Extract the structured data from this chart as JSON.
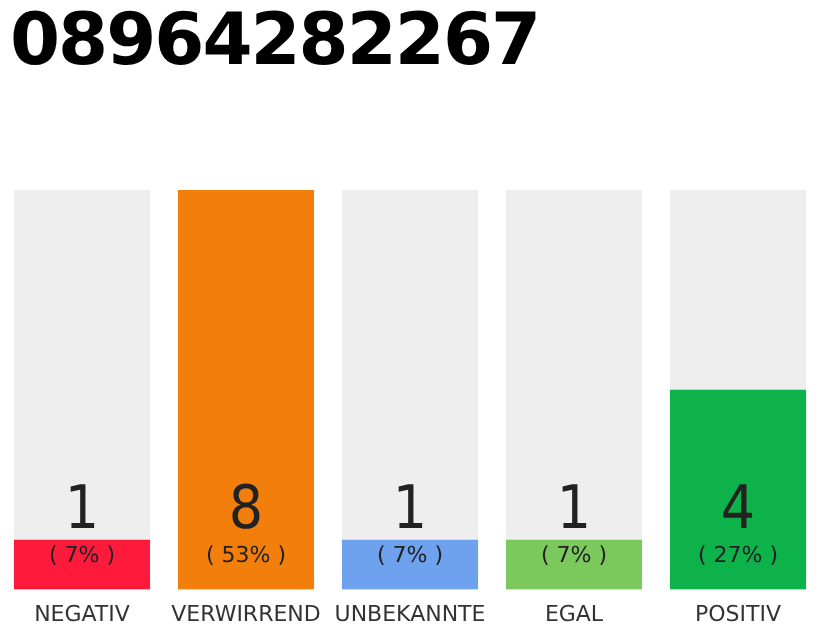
{
  "chart_data": {
    "type": "bar",
    "title": "08964282267",
    "categories": [
      "NEGATIV",
      "VERWIRREND",
      "UNBEKANNTE",
      "EGAL",
      "POSITIV"
    ],
    "values": [
      1,
      8,
      1,
      1,
      4
    ],
    "colors": [
      "#fe1a3b",
      "#f27e0c",
      "#6ea2ef",
      "#7bc95c",
      "#0db34a"
    ],
    "annotations": [
      "( 7% )",
      "( 53% )",
      "( 7% )",
      "( 7% )",
      "( 27% )"
    ],
    "data_labels": true,
    "grid": false,
    "legend": false
  }
}
